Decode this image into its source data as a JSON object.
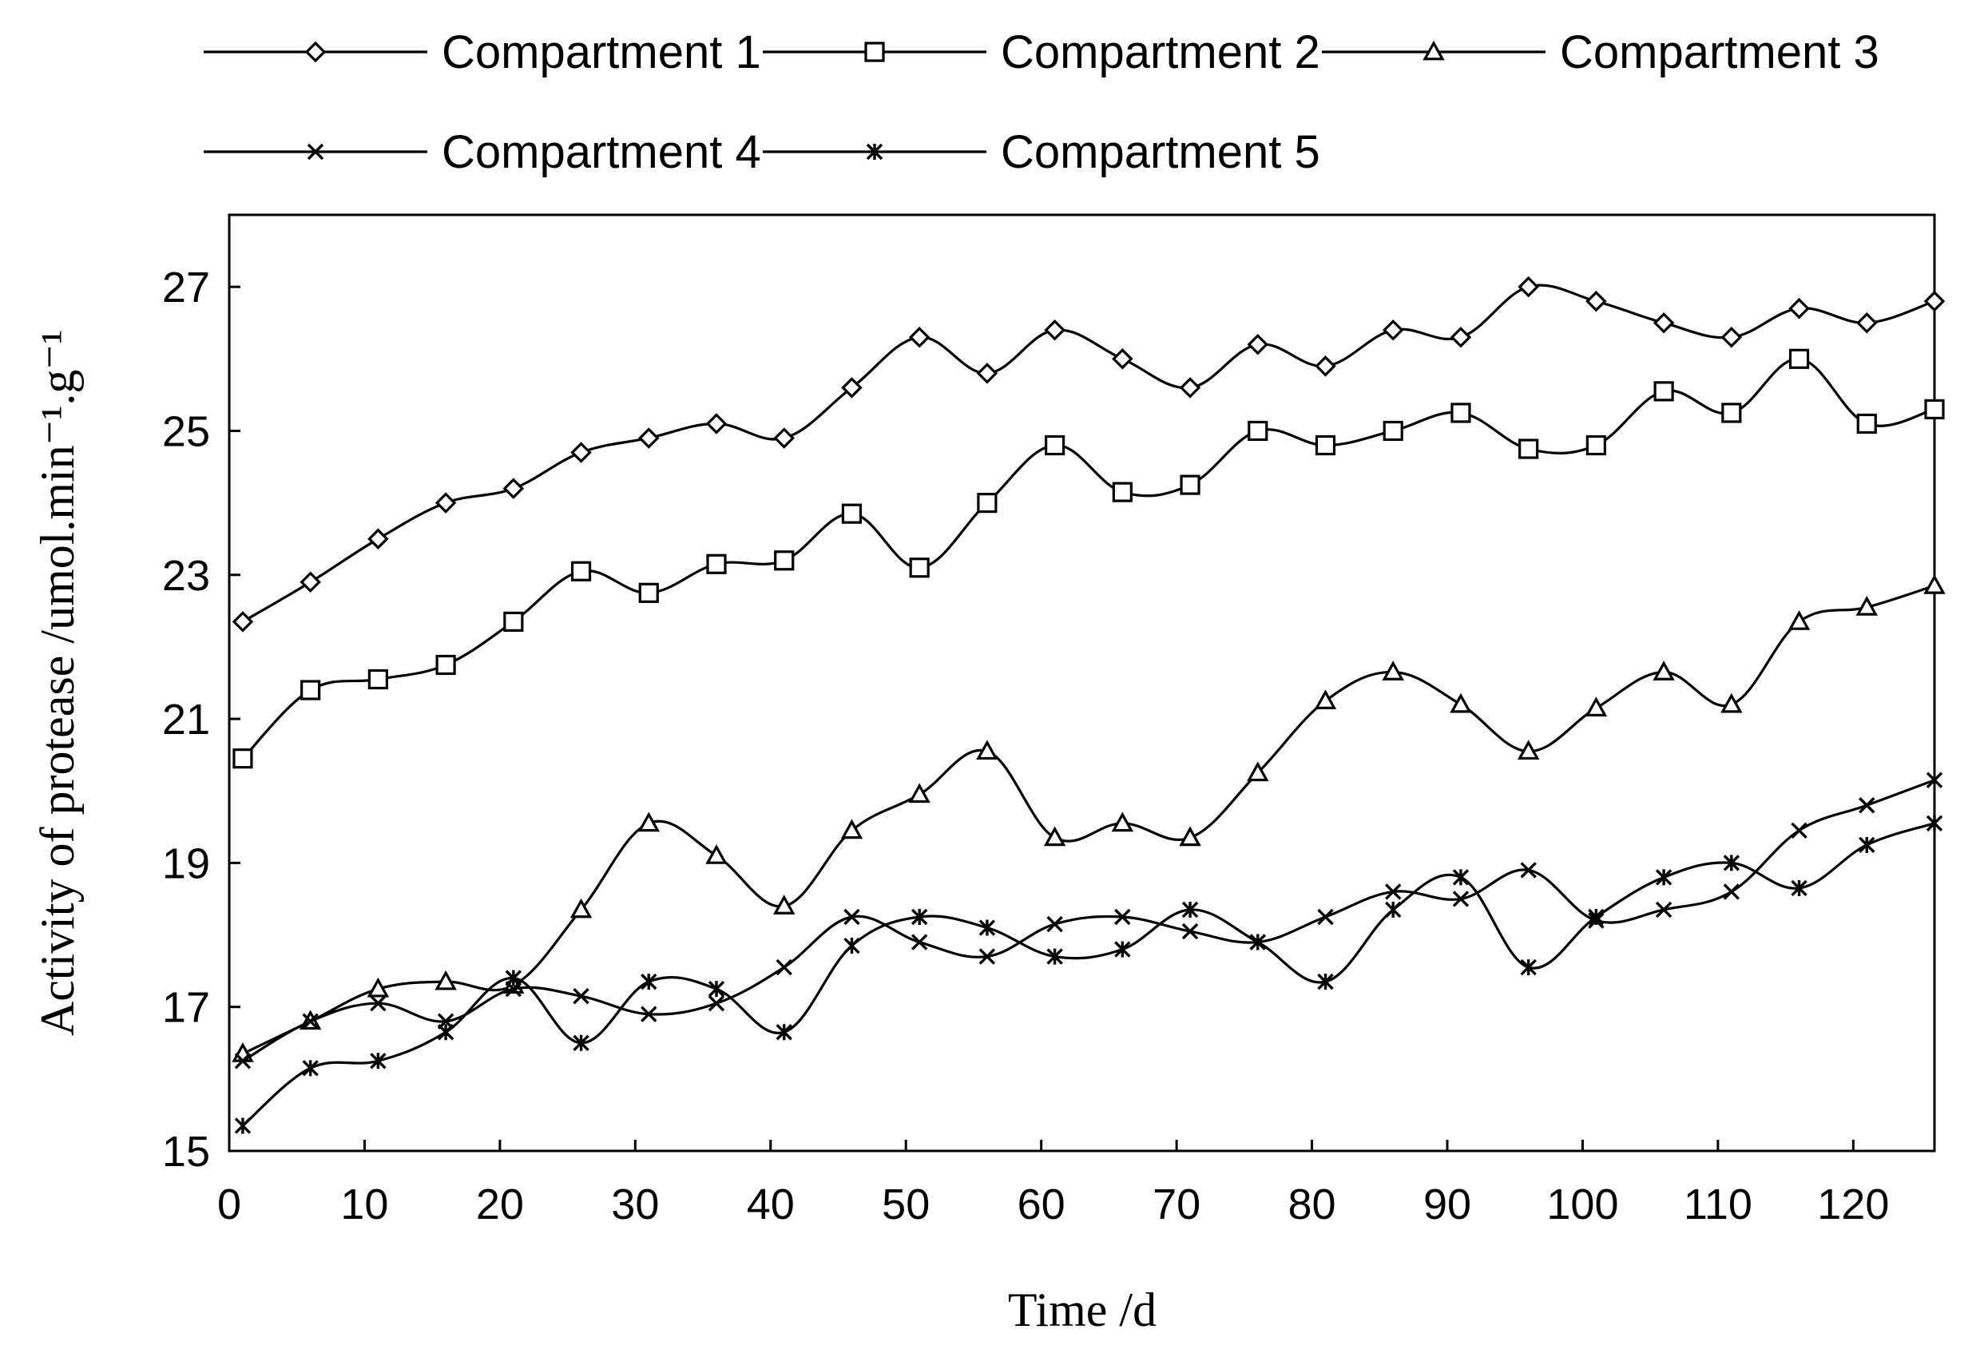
{
  "chart_data": {
    "type": "line",
    "title": "",
    "xlabel": "Time /d",
    "ylabel": "Activity of protease /umol.min⁻¹.g⁻¹",
    "xlim": [
      0,
      126
    ],
    "ylim": [
      15,
      28
    ],
    "x_ticks": [
      0,
      10,
      20,
      30,
      40,
      50,
      60,
      70,
      80,
      90,
      100,
      110,
      120
    ],
    "y_ticks": [
      15,
      17,
      19,
      21,
      23,
      25,
      27
    ],
    "grid": false,
    "legend_position": "top",
    "x": [
      1,
      6,
      11,
      16,
      21,
      26,
      31,
      36,
      41,
      46,
      51,
      56,
      61,
      66,
      71,
      76,
      81,
      86,
      91,
      96,
      101,
      106,
      111,
      116,
      121,
      126
    ],
    "series": [
      {
        "name": "Compartment 1",
        "marker": "diamond",
        "values": [
          22.35,
          22.9,
          23.5,
          24.0,
          24.2,
          24.7,
          24.9,
          25.1,
          24.9,
          25.6,
          26.3,
          25.8,
          26.4,
          26.0,
          25.6,
          26.2,
          25.9,
          26.4,
          26.3,
          27.0,
          26.8,
          26.5,
          26.3,
          26.7,
          26.5,
          26.8
        ]
      },
      {
        "name": "Compartment 2",
        "marker": "square",
        "values": [
          20.45,
          21.4,
          21.55,
          21.75,
          22.35,
          23.05,
          22.75,
          23.15,
          23.2,
          23.85,
          23.1,
          24.0,
          24.8,
          24.15,
          24.25,
          25.0,
          24.8,
          25.0,
          25.25,
          24.75,
          24.8,
          25.55,
          25.25,
          26.0,
          25.1,
          25.3
        ]
      },
      {
        "name": "Compartment 3",
        "marker": "triangle",
        "values": [
          16.35,
          16.8,
          17.25,
          17.35,
          17.3,
          18.35,
          19.55,
          19.1,
          18.4,
          19.45,
          19.95,
          20.55,
          19.35,
          19.55,
          19.35,
          20.25,
          21.25,
          21.65,
          21.2,
          20.55,
          21.15,
          21.65,
          21.2,
          22.35,
          22.55,
          22.85
        ]
      },
      {
        "name": "Compartment 4",
        "marker": "x",
        "values": [
          16.25,
          16.8,
          17.05,
          16.8,
          17.25,
          17.15,
          16.9,
          17.05,
          17.55,
          18.25,
          17.9,
          17.7,
          18.15,
          18.25,
          18.05,
          17.9,
          18.25,
          18.6,
          18.5,
          18.9,
          18.2,
          18.35,
          18.6,
          19.45,
          19.8,
          20.15
        ]
      },
      {
        "name": "Compartment 5",
        "marker": "asterisk",
        "values": [
          15.35,
          16.15,
          16.25,
          16.65,
          17.4,
          16.5,
          17.35,
          17.25,
          16.65,
          17.85,
          18.25,
          18.1,
          17.7,
          17.8,
          18.35,
          17.9,
          17.35,
          18.35,
          18.8,
          17.55,
          18.25,
          18.8,
          19.0,
          18.65,
          19.25,
          19.55
        ]
      }
    ]
  }
}
